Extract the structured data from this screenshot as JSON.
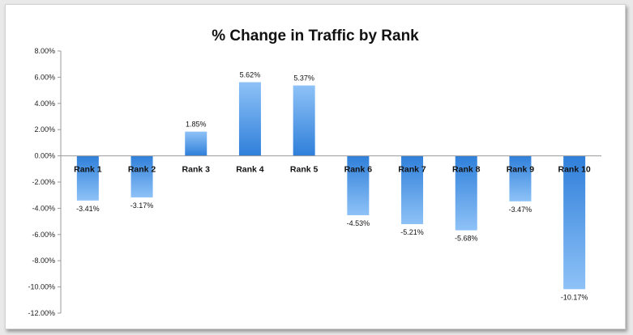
{
  "chart_data": {
    "type": "bar",
    "title": "% Change in Traffic by Rank",
    "xlabel": "",
    "ylabel": "",
    "categories": [
      "Rank 1",
      "Rank 2",
      "Rank 3",
      "Rank 4",
      "Rank 5",
      "Rank 6",
      "Rank 7",
      "Rank 8",
      "Rank 9",
      "Rank 10"
    ],
    "values": [
      -3.41,
      -3.17,
      1.85,
      5.62,
      5.37,
      -4.53,
      -5.21,
      -5.68,
      -3.47,
      -10.17
    ],
    "data_labels": [
      "-3.41%",
      "-3.17%",
      "1.85%",
      "5.62%",
      "5.37%",
      "-4.53%",
      "-5.21%",
      "-5.68%",
      "-3.47%",
      "-10.17%"
    ],
    "yticks": [
      8,
      6,
      4,
      2,
      0,
      -2,
      -4,
      -6,
      -8,
      -10,
      -12
    ],
    "ytick_labels": [
      "8.00%",
      "6.00%",
      "4.00%",
      "2.00%",
      "0.00%",
      "-2.00%",
      "-4.00%",
      "-6.00%",
      "-8.00%",
      "-10.00%",
      "-12.00%"
    ],
    "ylim": [
      -12,
      8
    ],
    "grid": false,
    "legend": "none",
    "colors": {
      "bar_light": "#8ec2f7",
      "bar_dark": "#2f7fda",
      "axis": "#999999"
    }
  }
}
